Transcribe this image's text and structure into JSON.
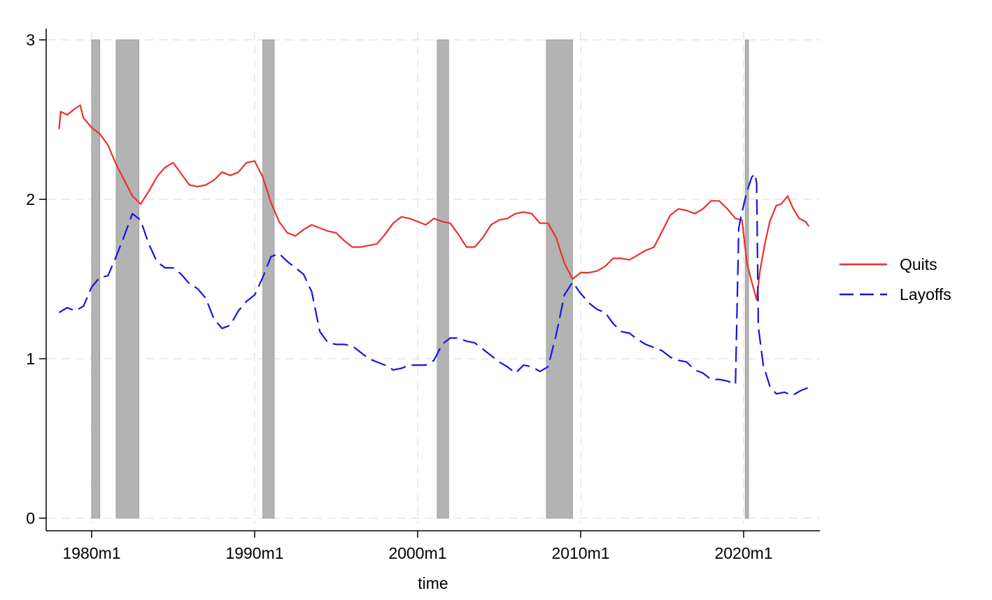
{
  "chart_data": {
    "type": "line",
    "xlabel": "time",
    "ylabel": "",
    "xlim": [
      1978.0,
      2024.0
    ],
    "ylim": [
      0,
      3
    ],
    "x_ticks": [
      1980,
      1990,
      2000,
      2010,
      2020
    ],
    "x_tick_labels": [
      "1980m1",
      "1990m1",
      "2000m1",
      "2010m1",
      "2020m1"
    ],
    "y_ticks": [
      0,
      1,
      2,
      3
    ],
    "y_tick_labels": [
      "0",
      "1",
      "2",
      "3"
    ],
    "grid": true,
    "legend_position": "right",
    "recessions": [
      [
        1980.0,
        1980.5
      ],
      [
        1981.5,
        1982.9
      ],
      [
        1990.5,
        1991.2
      ],
      [
        2001.2,
        2001.9
      ],
      [
        2007.9,
        2009.5
      ],
      [
        2020.1,
        2020.3
      ]
    ],
    "recession_color": "#b3b3b3",
    "series": [
      {
        "name": "Quits",
        "color": "#e8322b",
        "dash": "solid",
        "points": [
          [
            1978.0,
            2.44
          ],
          [
            1978.1,
            2.55
          ],
          [
            1978.5,
            2.53
          ],
          [
            1979.0,
            2.57
          ],
          [
            1979.3,
            2.59
          ],
          [
            1979.5,
            2.51
          ],
          [
            1980.0,
            2.45
          ],
          [
            1980.5,
            2.41
          ],
          [
            1981.0,
            2.34
          ],
          [
            1981.5,
            2.22
          ],
          [
            1982.0,
            2.12
          ],
          [
            1982.5,
            2.02
          ],
          [
            1983.0,
            1.97
          ],
          [
            1983.5,
            2.05
          ],
          [
            1984.0,
            2.14
          ],
          [
            1984.5,
            2.2
          ],
          [
            1985.0,
            2.23
          ],
          [
            1985.5,
            2.16
          ],
          [
            1986.0,
            2.09
          ],
          [
            1986.5,
            2.08
          ],
          [
            1987.0,
            2.09
          ],
          [
            1987.5,
            2.12
          ],
          [
            1988.0,
            2.17
          ],
          [
            1988.5,
            2.15
          ],
          [
            1989.0,
            2.17
          ],
          [
            1989.5,
            2.23
          ],
          [
            1990.0,
            2.24
          ],
          [
            1990.5,
            2.14
          ],
          [
            1991.0,
            1.98
          ],
          [
            1991.5,
            1.86
          ],
          [
            1992.0,
            1.79
          ],
          [
            1992.5,
            1.77
          ],
          [
            1993.0,
            1.81
          ],
          [
            1993.5,
            1.84
          ],
          [
            1994.0,
            1.82
          ],
          [
            1994.5,
            1.8
          ],
          [
            1995.0,
            1.79
          ],
          [
            1995.5,
            1.74
          ],
          [
            1996.0,
            1.7
          ],
          [
            1996.5,
            1.7
          ],
          [
            1997.0,
            1.71
          ],
          [
            1997.5,
            1.72
          ],
          [
            1998.0,
            1.78
          ],
          [
            1998.5,
            1.85
          ],
          [
            1999.0,
            1.89
          ],
          [
            1999.5,
            1.88
          ],
          [
            2000.0,
            1.86
          ],
          [
            2000.5,
            1.84
          ],
          [
            2001.0,
            1.88
          ],
          [
            2001.5,
            1.86
          ],
          [
            2002.0,
            1.85
          ],
          [
            2002.5,
            1.78
          ],
          [
            2003.0,
            1.7
          ],
          [
            2003.5,
            1.7
          ],
          [
            2004.0,
            1.76
          ],
          [
            2004.5,
            1.84
          ],
          [
            2005.0,
            1.87
          ],
          [
            2005.5,
            1.88
          ],
          [
            2006.0,
            1.91
          ],
          [
            2006.5,
            1.92
          ],
          [
            2007.0,
            1.91
          ],
          [
            2007.5,
            1.85
          ],
          [
            2008.0,
            1.85
          ],
          [
            2008.5,
            1.76
          ],
          [
            2009.0,
            1.6
          ],
          [
            2009.5,
            1.5
          ],
          [
            2010.0,
            1.54
          ],
          [
            2010.5,
            1.54
          ],
          [
            2011.0,
            1.55
          ],
          [
            2011.5,
            1.58
          ],
          [
            2012.0,
            1.63
          ],
          [
            2012.5,
            1.63
          ],
          [
            2013.0,
            1.62
          ],
          [
            2013.5,
            1.65
          ],
          [
            2014.0,
            1.68
          ],
          [
            2014.5,
            1.7
          ],
          [
            2015.0,
            1.8
          ],
          [
            2015.5,
            1.9
          ],
          [
            2016.0,
            1.94
          ],
          [
            2016.5,
            1.93
          ],
          [
            2017.0,
            1.91
          ],
          [
            2017.5,
            1.94
          ],
          [
            2018.0,
            1.99
          ],
          [
            2018.5,
            1.99
          ],
          [
            2019.0,
            1.94
          ],
          [
            2019.5,
            1.88
          ],
          [
            2019.9,
            1.87
          ],
          [
            2020.2,
            1.6
          ],
          [
            2020.5,
            1.48
          ],
          [
            2020.8,
            1.37
          ],
          [
            2021.0,
            1.55
          ],
          [
            2021.3,
            1.72
          ],
          [
            2021.6,
            1.86
          ],
          [
            2022.0,
            1.96
          ],
          [
            2022.3,
            1.97
          ],
          [
            2022.7,
            2.02
          ],
          [
            2023.0,
            1.95
          ],
          [
            2023.4,
            1.88
          ],
          [
            2023.8,
            1.86
          ],
          [
            2024.0,
            1.83
          ]
        ]
      },
      {
        "name": "Layoffs",
        "color": "#1414e6",
        "dash": "long-dash",
        "points": [
          [
            1978.0,
            1.29
          ],
          [
            1978.5,
            1.32
          ],
          [
            1979.0,
            1.3
          ],
          [
            1979.5,
            1.33
          ],
          [
            1980.0,
            1.45
          ],
          [
            1980.5,
            1.51
          ],
          [
            1981.0,
            1.52
          ],
          [
            1981.5,
            1.64
          ],
          [
            1982.0,
            1.77
          ],
          [
            1982.5,
            1.91
          ],
          [
            1983.0,
            1.87
          ],
          [
            1983.5,
            1.72
          ],
          [
            1984.0,
            1.61
          ],
          [
            1984.5,
            1.57
          ],
          [
            1985.0,
            1.57
          ],
          [
            1985.5,
            1.53
          ],
          [
            1986.0,
            1.47
          ],
          [
            1986.5,
            1.44
          ],
          [
            1987.0,
            1.38
          ],
          [
            1987.5,
            1.25
          ],
          [
            1988.0,
            1.19
          ],
          [
            1988.5,
            1.21
          ],
          [
            1989.0,
            1.3
          ],
          [
            1989.5,
            1.36
          ],
          [
            1990.0,
            1.4
          ],
          [
            1990.5,
            1.51
          ],
          [
            1991.0,
            1.64
          ],
          [
            1991.5,
            1.66
          ],
          [
            1992.0,
            1.61
          ],
          [
            1992.5,
            1.57
          ],
          [
            1993.0,
            1.53
          ],
          [
            1993.5,
            1.42
          ],
          [
            1994.0,
            1.17
          ],
          [
            1994.5,
            1.1
          ],
          [
            1995.0,
            1.09
          ],
          [
            1995.5,
            1.09
          ],
          [
            1996.0,
            1.08
          ],
          [
            1996.5,
            1.04
          ],
          [
            1997.0,
            1.0
          ],
          [
            1997.5,
            0.98
          ],
          [
            1998.0,
            0.96
          ],
          [
            1998.5,
            0.93
          ],
          [
            1999.0,
            0.94
          ],
          [
            1999.5,
            0.96
          ],
          [
            2000.0,
            0.96
          ],
          [
            2000.5,
            0.96
          ],
          [
            2001.0,
            0.99
          ],
          [
            2001.5,
            1.09
          ],
          [
            2002.0,
            1.13
          ],
          [
            2002.5,
            1.13
          ],
          [
            2003.0,
            1.11
          ],
          [
            2003.5,
            1.1
          ],
          [
            2004.0,
            1.06
          ],
          [
            2004.5,
            1.02
          ],
          [
            2005.0,
            0.98
          ],
          [
            2005.5,
            0.95
          ],
          [
            2006.0,
            0.91
          ],
          [
            2006.5,
            0.96
          ],
          [
            2007.0,
            0.95
          ],
          [
            2007.5,
            0.92
          ],
          [
            2008.0,
            0.95
          ],
          [
            2008.5,
            1.15
          ],
          [
            2009.0,
            1.4
          ],
          [
            2009.5,
            1.48
          ],
          [
            2010.0,
            1.41
          ],
          [
            2010.5,
            1.35
          ],
          [
            2011.0,
            1.31
          ],
          [
            2011.5,
            1.29
          ],
          [
            2012.0,
            1.22
          ],
          [
            2012.5,
            1.17
          ],
          [
            2013.0,
            1.16
          ],
          [
            2013.5,
            1.12
          ],
          [
            2014.0,
            1.09
          ],
          [
            2014.5,
            1.07
          ],
          [
            2015.0,
            1.05
          ],
          [
            2015.5,
            1.01
          ],
          [
            2016.0,
            0.99
          ],
          [
            2016.5,
            0.98
          ],
          [
            2017.0,
            0.93
          ],
          [
            2017.5,
            0.91
          ],
          [
            2018.0,
            0.87
          ],
          [
            2018.5,
            0.87
          ],
          [
            2019.0,
            0.86
          ],
          [
            2019.5,
            0.84
          ],
          [
            2019.7,
            1.82
          ],
          [
            2019.9,
            1.92
          ],
          [
            2020.2,
            2.05
          ],
          [
            2020.5,
            2.14
          ],
          [
            2020.7,
            2.16
          ],
          [
            2020.8,
            2.1
          ],
          [
            2020.9,
            1.2
          ],
          [
            2021.2,
            0.96
          ],
          [
            2021.6,
            0.83
          ],
          [
            2022.0,
            0.78
          ],
          [
            2022.5,
            0.79
          ],
          [
            2023.0,
            0.77
          ],
          [
            2023.5,
            0.8
          ],
          [
            2024.0,
            0.82
          ]
        ]
      }
    ]
  }
}
